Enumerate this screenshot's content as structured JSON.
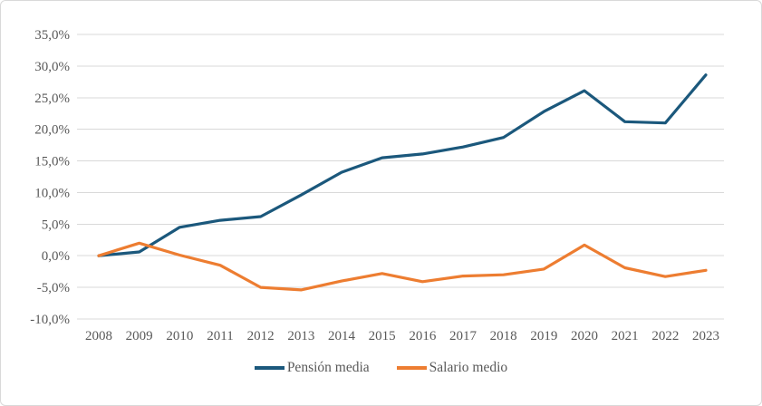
{
  "chart_data": {
    "type": "line",
    "title": "",
    "xlabel": "",
    "ylabel": "",
    "x": [
      2008,
      2009,
      2010,
      2011,
      2012,
      2013,
      2014,
      2015,
      2016,
      2017,
      2018,
      2019,
      2020,
      2021,
      2022,
      2023
    ],
    "series": [
      {
        "name": "Pensión media",
        "color": "#1b587c",
        "values": [
          0.0,
          0.6,
          4.5,
          5.6,
          6.2,
          9.6,
          13.2,
          15.5,
          16.1,
          17.2,
          18.7,
          22.8,
          26.1,
          21.2,
          21.0,
          28.6
        ]
      },
      {
        "name": "Salario medio",
        "color": "#ed7d31",
        "values": [
          0.0,
          2.0,
          0.1,
          -1.5,
          -5.0,
          -5.4,
          -4.0,
          -2.8,
          -4.1,
          -3.2,
          -3.0,
          -2.1,
          1.7,
          -1.9,
          -3.3,
          -2.3
        ]
      }
    ],
    "ylim": [
      -10,
      35
    ],
    "ytick_step": 5,
    "ytick_labels": [
      "35,0%",
      "30,0%",
      "25,0%",
      "20,0%",
      "15,0%",
      "10,0%",
      "5,0%",
      "0,0%",
      "-5,0%",
      "-10,0%"
    ],
    "grid": true,
    "legend_position": "bottom"
  },
  "colors": {
    "gridline": "#d9d9d9",
    "tick_text": "#595959",
    "frame_border": "#d9d9d9"
  }
}
